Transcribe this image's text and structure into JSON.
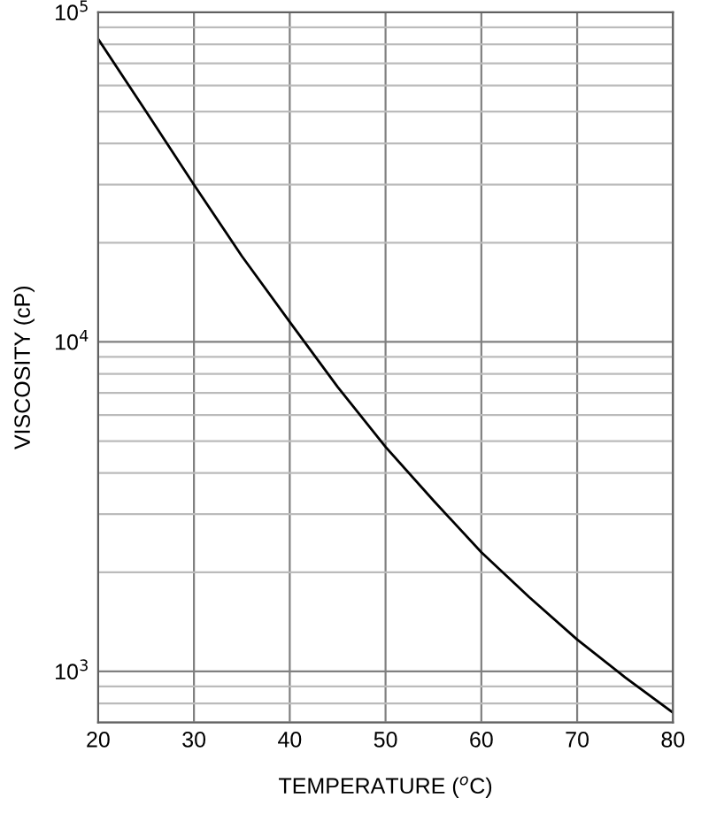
{
  "chart_data": {
    "type": "line",
    "xlabel": "TEMPERATURE ($^{o}$C)",
    "ylabel": "VISCOSITY (cP)",
    "x": [
      20,
      25,
      30,
      35,
      40,
      45,
      50,
      55,
      60,
      65,
      70,
      75,
      80
    ],
    "series": [
      {
        "color": "#000000",
        "values": [
          83000,
          50000,
          30000,
          18200,
          11500,
          7300,
          4800,
          3300,
          2300,
          1680,
          1250,
          960,
          750
        ]
      }
    ],
    "xlim": [
      20,
      80
    ],
    "xticks": [
      20,
      30,
      40,
      50,
      60,
      70,
      80
    ],
    "ylim": [
      700,
      100000
    ],
    "yticks": [
      {
        "value": 1000,
        "label": "10$^{3}$"
      },
      {
        "value": 10000,
        "label": "10$^{4}$"
      },
      {
        "value": 100000,
        "label": "10$^{5}$"
      }
    ],
    "log": "y",
    "grid": true,
    "marker": "none",
    "line_style": "solid"
  }
}
